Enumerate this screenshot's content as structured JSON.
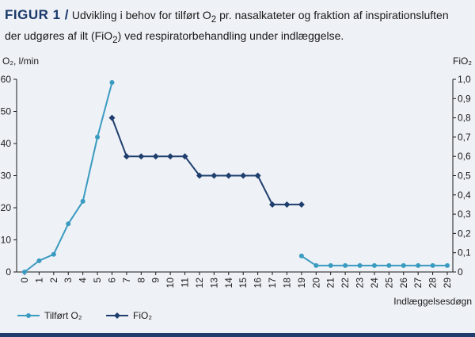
{
  "figure": {
    "label": "FIGUR 1 /",
    "title_line1_a": "Udvikling i behov for tilført O",
    "title_line1_sub": "2",
    "title_line1_b": " pr. nasalkateter og fraktion af inspirationsluften",
    "title_line2_a": "der udgøres af ilt (FiO",
    "title_line2_sub": "2",
    "title_line2_b": ") ved respiratorbehandling under indlæggelse."
  },
  "chart_data": {
    "type": "line",
    "x_label": "Indlæggelsesdøgn",
    "y_left_label": "O₂, l/min",
    "y_right_label": "FiO₂",
    "x_ticks": [
      "0",
      "1",
      "2",
      "3",
      "4",
      "5",
      "6",
      "7",
      "8",
      "9",
      "10",
      "11",
      "12",
      "13",
      "14",
      "15",
      "16",
      "17",
      "18",
      "19",
      "20",
      "21",
      "22",
      "23",
      "24",
      "25",
      "26",
      "27",
      "28",
      "29"
    ],
    "y_left_ticks": [
      "0",
      "10",
      "20",
      "30",
      "40",
      "50",
      "60"
    ],
    "y_right_ticks": [
      "0",
      "0,1",
      "0,2",
      "0,3",
      "0,4",
      "0,5",
      "0,6",
      "0,7",
      "0,8",
      "0,9",
      "1,0"
    ],
    "y_left_range": [
      0,
      60
    ],
    "y_right_range": [
      0,
      1.0
    ],
    "x_range": [
      0,
      29
    ],
    "grid": false,
    "legend_position": "bottom-left",
    "series": [
      {
        "name": "Tilført O₂",
        "axis": "left",
        "color": "#3a9bc1",
        "marker": "circle",
        "segments": [
          [
            [
              0,
              0
            ],
            [
              1,
              3.5
            ],
            [
              2,
              5.5
            ],
            [
              3,
              15
            ],
            [
              4,
              22
            ],
            [
              5,
              42
            ],
            [
              6,
              59
            ]
          ],
          [
            [
              19,
              5
            ],
            [
              20,
              2
            ],
            [
              21,
              2
            ],
            [
              22,
              2
            ],
            [
              23,
              2
            ],
            [
              24,
              2
            ],
            [
              25,
              2
            ],
            [
              26,
              2
            ],
            [
              27,
              2
            ],
            [
              28,
              2
            ],
            [
              29,
              2
            ]
          ]
        ]
      },
      {
        "name": "FiO₂",
        "axis": "right",
        "color": "#1f3e6e",
        "marker": "diamond",
        "segments": [
          [
            [
              6,
              0.8
            ],
            [
              7,
              0.6
            ],
            [
              8,
              0.6
            ],
            [
              9,
              0.6
            ],
            [
              10,
              0.6
            ],
            [
              11,
              0.6
            ],
            [
              12,
              0.5
            ],
            [
              13,
              0.5
            ],
            [
              14,
              0.5
            ],
            [
              15,
              0.5
            ],
            [
              16,
              0.5
            ],
            [
              17,
              0.35
            ],
            [
              18,
              0.35
            ],
            [
              19,
              0.35
            ]
          ]
        ]
      }
    ]
  }
}
